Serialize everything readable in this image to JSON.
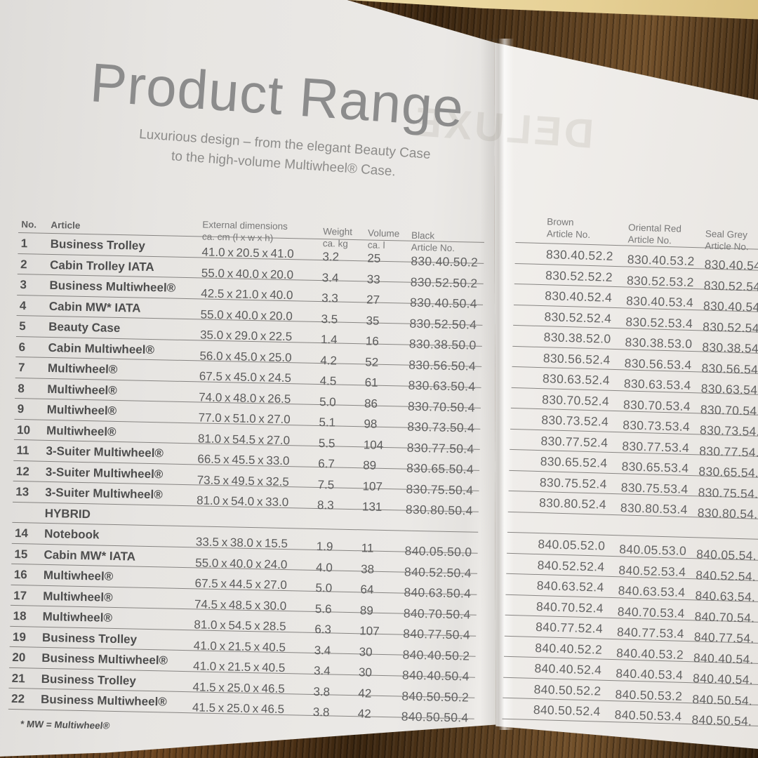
{
  "photo": {
    "ghost_text": "DELUXE"
  },
  "page": {
    "title": "Product Range",
    "subtitle_line1": "Luxurious design – from the elegant Beauty Case",
    "subtitle_line2": "to the high-volume Multiwheel® Case.",
    "footnote": "* MW = Multiwheel®"
  },
  "colors": {
    "page_grey": "#ebe9e6",
    "rule_grey": "#6e6c69",
    "text_grey": "#4d4d4d",
    "wood_brown": "#5a3a18",
    "surface_beige": "#eedda9"
  },
  "table": {
    "headers": {
      "no": "No.",
      "article": "Article",
      "dimensions_l1": "External dimensions",
      "dimensions_l2": "ca. cm (l x w x h)",
      "weight_l1": "Weight",
      "weight_l2": "ca. kg",
      "volume_l1": "Volume",
      "volume_l2": "ca. l",
      "black_l1": "Black",
      "black_l2": "Article No.",
      "brown_l1": "Brown",
      "brown_l2": "Article No.",
      "red_l1": "Oriental Red",
      "red_l2": "Article No.",
      "grey_l1": "Seal Grey",
      "grey_l2": "Article No."
    },
    "section_label": "HYBRID",
    "rows": [
      {
        "no": "1",
        "article": "Business Trolley",
        "dims": "41.0 x 20.5 x 41.0",
        "weight": "3.2",
        "volume": "25",
        "black": "830.40.50.2",
        "brown": "830.40.52.2",
        "red": "830.40.53.2",
        "grey": "830.40.54."
      },
      {
        "no": "2",
        "article": "Cabin Trolley IATA",
        "dims": "55.0 x 40.0 x 20.0",
        "weight": "3.4",
        "volume": "33",
        "black": "830.52.50.2",
        "brown": "830.52.52.2",
        "red": "830.52.53.2",
        "grey": "830.52.54."
      },
      {
        "no": "3",
        "article": "Business Multiwheel®",
        "dims": "42.5 x 21.0 x 40.0",
        "weight": "3.3",
        "volume": "27",
        "black": "830.40.50.4",
        "brown": "830.40.52.4",
        "red": "830.40.53.4",
        "grey": "830.40.54."
      },
      {
        "no": "4",
        "article": "Cabin MW* IATA",
        "dims": "55.0 x 40.0 x 20.0",
        "weight": "3.5",
        "volume": "35",
        "black": "830.52.50.4",
        "brown": "830.52.52.4",
        "red": "830.52.53.4",
        "grey": "830.52.54."
      },
      {
        "no": "5",
        "article": "Beauty Case",
        "dims": "35.0 x 29.0 x 22.5",
        "weight": "1.4",
        "volume": "16",
        "black": "830.38.50.0",
        "brown": "830.38.52.0",
        "red": "830.38.53.0",
        "grey": "830.38.54."
      },
      {
        "no": "6",
        "article": "Cabin Multiwheel®",
        "dims": "56.0 x 45.0 x 25.0",
        "weight": "4.2",
        "volume": "52",
        "black": "830.56.50.4",
        "brown": "830.56.52.4",
        "red": "830.56.53.4",
        "grey": "830.56.54."
      },
      {
        "no": "7",
        "article": "Multiwheel®",
        "dims": "67.5 x 45.0 x 24.5",
        "weight": "4.5",
        "volume": "61",
        "black": "830.63.50.4",
        "brown": "830.63.52.4",
        "red": "830.63.53.4",
        "grey": "830.63.54."
      },
      {
        "no": "8",
        "article": "Multiwheel®",
        "dims": "74.0 x 48.0 x 26.5",
        "weight": "5.0",
        "volume": "86",
        "black": "830.70.50.4",
        "brown": "830.70.52.4",
        "red": "830.70.53.4",
        "grey": "830.70.54."
      },
      {
        "no": "9",
        "article": "Multiwheel®",
        "dims": "77.0 x 51.0 x 27.0",
        "weight": "5.1",
        "volume": "98",
        "black": "830.73.50.4",
        "brown": "830.73.52.4",
        "red": "830.73.53.4",
        "grey": "830.73.54."
      },
      {
        "no": "10",
        "article": "Multiwheel®",
        "dims": "81.0 x 54.5 x 27.0",
        "weight": "5.5",
        "volume": "104",
        "black": "830.77.50.4",
        "brown": "830.77.52.4",
        "red": "830.77.53.4",
        "grey": "830.77.54."
      },
      {
        "no": "11",
        "article": "3-Suiter Multiwheel®",
        "dims": "66.5 x 45.5 x 33.0",
        "weight": "6.7",
        "volume": "89",
        "black": "830.65.50.4",
        "brown": "830.65.52.4",
        "red": "830.65.53.4",
        "grey": "830.65.54."
      },
      {
        "no": "12",
        "article": "3-Suiter Multiwheel®",
        "dims": "73.5 x 49.5 x 32.5",
        "weight": "7.5",
        "volume": "107",
        "black": "830.75.50.4",
        "brown": "830.75.52.4",
        "red": "830.75.53.4",
        "grey": "830.75.54."
      },
      {
        "no": "13",
        "article": "3-Suiter Multiwheel®",
        "dims": "81.0 x 54.0 x 33.0",
        "weight": "8.3",
        "volume": "131",
        "black": "830.80.50.4",
        "brown": "830.80.52.4",
        "red": "830.80.53.4",
        "grey": "830.80.54."
      },
      {
        "is_section": true,
        "no": "",
        "article": "HYBRID",
        "dims": "",
        "weight": "",
        "volume": "",
        "black": "",
        "brown": "",
        "red": "",
        "grey": ""
      },
      {
        "no": "14",
        "article": "Notebook",
        "dims": "33.5 x 38.0 x 15.5",
        "weight": "1.9",
        "volume": "11",
        "black": "840.05.50.0",
        "brown": "840.05.52.0",
        "red": "840.05.53.0",
        "grey": "840.05.54."
      },
      {
        "no": "15",
        "article": "Cabin MW* IATA",
        "dims": "55.0 x 40.0 x 24.0",
        "weight": "4.0",
        "volume": "38",
        "black": "840.52.50.4",
        "brown": "840.52.52.4",
        "red": "840.52.53.4",
        "grey": "840.52.54."
      },
      {
        "no": "16",
        "article": "Multiwheel®",
        "dims": "67.5 x 44.5 x 27.0",
        "weight": "5.0",
        "volume": "64",
        "black": "840.63.50.4",
        "brown": "840.63.52.4",
        "red": "840.63.53.4",
        "grey": "840.63.54."
      },
      {
        "no": "17",
        "article": "Multiwheel®",
        "dims": "74.5 x 48.5 x 30.0",
        "weight": "5.6",
        "volume": "89",
        "black": "840.70.50.4",
        "brown": "840.70.52.4",
        "red": "840.70.53.4",
        "grey": "840.70.54."
      },
      {
        "no": "18",
        "article": "Multiwheel®",
        "dims": "81.0 x 54.5 x 28.5",
        "weight": "6.3",
        "volume": "107",
        "black": "840.77.50.4",
        "brown": "840.77.52.4",
        "red": "840.77.53.4",
        "grey": "840.77.54."
      },
      {
        "no": "19",
        "article": "Business Trolley",
        "dims": "41.0 x 21.5 x 40.5",
        "weight": "3.4",
        "volume": "30",
        "black": "840.40.50.2",
        "brown": "840.40.52.2",
        "red": "840.40.53.2",
        "grey": "840.40.54."
      },
      {
        "no": "20",
        "article": "Business Multiwheel®",
        "dims": "41.0 x 21.5 x 40.5",
        "weight": "3.4",
        "volume": "30",
        "black": "840.40.50.4",
        "brown": "840.40.52.4",
        "red": "840.40.53.4",
        "grey": "840.40.54."
      },
      {
        "no": "21",
        "article": "Business Trolley",
        "dims": "41.5 x 25.0 x 46.5",
        "weight": "3.8",
        "volume": "42",
        "black": "840.50.50.2",
        "brown": "840.50.52.2",
        "red": "840.50.53.2",
        "grey": "840.50.54."
      },
      {
        "no": "22",
        "article": "Business Multiwheel®",
        "dims": "41.5 x 25.0 x 46.5",
        "weight": "3.8",
        "volume": "42",
        "black": "840.50.50.4",
        "brown": "840.50.52.4",
        "red": "840.50.53.4",
        "grey": "840.50.54."
      }
    ]
  }
}
